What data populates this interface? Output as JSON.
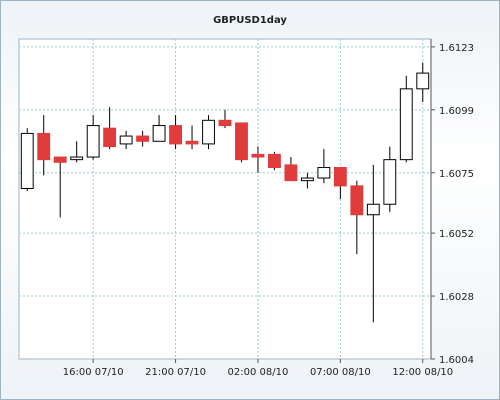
{
  "chart_data": {
    "type": "candlestick",
    "title": "GBPUSD1day",
    "xlabel": "",
    "ylabel": "",
    "ylim": [
      1.6004,
      1.6126
    ],
    "y_ticks": [
      1.6123,
      1.6099,
      1.6075,
      1.6052,
      1.6028,
      1.6004
    ],
    "y_tick_labels": [
      "1.6123",
      "1.6099",
      "1.6075",
      "1.6052",
      "1.6028",
      "1.6004"
    ],
    "x_tick_labels": [
      "16:00 07/10",
      "21:00 07/10",
      "02:00 08/10",
      "07:00 08/10",
      "12:00 08/10"
    ],
    "x_tick_positions": [
      4.5,
      9.5,
      14.5,
      19.5,
      24.5
    ],
    "grid": true,
    "colors": {
      "up": "#ffffff",
      "down": "#e03c3c",
      "outline": "#000000",
      "grid": "#9ccfd3"
    },
    "candles": [
      {
        "open": 1.6069,
        "high": 1.6092,
        "low": 1.6068,
        "close": 1.609
      },
      {
        "open": 1.609,
        "high": 1.6097,
        "low": 1.6074,
        "close": 1.608
      },
      {
        "open": 1.6081,
        "high": 1.6081,
        "low": 1.6058,
        "close": 1.6079
      },
      {
        "open": 1.608,
        "high": 1.6087,
        "low": 1.6079,
        "close": 1.6081
      },
      {
        "open": 1.6081,
        "high": 1.6097,
        "low": 1.608,
        "close": 1.6093
      },
      {
        "open": 1.6092,
        "high": 1.61,
        "low": 1.6084,
        "close": 1.6085
      },
      {
        "open": 1.6086,
        "high": 1.6091,
        "low": 1.6084,
        "close": 1.6089
      },
      {
        "open": 1.6089,
        "high": 1.6091,
        "low": 1.6085,
        "close": 1.6087
      },
      {
        "open": 1.6087,
        "high": 1.6097,
        "low": 1.6087,
        "close": 1.6093
      },
      {
        "open": 1.6093,
        "high": 1.6097,
        "low": 1.6084,
        "close": 1.6086
      },
      {
        "open": 1.6087,
        "high": 1.6093,
        "low": 1.6084,
        "close": 1.6086
      },
      {
        "open": 1.6086,
        "high": 1.6097,
        "low": 1.6084,
        "close": 1.6095
      },
      {
        "open": 1.6095,
        "high": 1.6099,
        "low": 1.6092,
        "close": 1.6093
      },
      {
        "open": 1.6094,
        "high": 1.6094,
        "low": 1.6079,
        "close": 1.608
      },
      {
        "open": 1.6082,
        "high": 1.6085,
        "low": 1.6075,
        "close": 1.6081
      },
      {
        "open": 1.6082,
        "high": 1.6083,
        "low": 1.6076,
        "close": 1.6077
      },
      {
        "open": 1.6078,
        "high": 1.6081,
        "low": 1.6072,
        "close": 1.6072
      },
      {
        "open": 1.6072,
        "high": 1.6075,
        "low": 1.6069,
        "close": 1.6073
      },
      {
        "open": 1.6073,
        "high": 1.6084,
        "low": 1.6071,
        "close": 1.6077
      },
      {
        "open": 1.6077,
        "high": 1.6077,
        "low": 1.6065,
        "close": 1.607
      },
      {
        "open": 1.607,
        "high": 1.6072,
        "low": 1.6044,
        "close": 1.6059
      },
      {
        "open": 1.6059,
        "high": 1.6078,
        "low": 1.6018,
        "close": 1.6063
      },
      {
        "open": 1.6063,
        "high": 1.6085,
        "low": 1.606,
        "close": 1.608
      },
      {
        "open": 1.608,
        "high": 1.6112,
        "low": 1.6079,
        "close": 1.6107
      },
      {
        "open": 1.6107,
        "high": 1.6117,
        "low": 1.6102,
        "close": 1.6113
      }
    ]
  }
}
